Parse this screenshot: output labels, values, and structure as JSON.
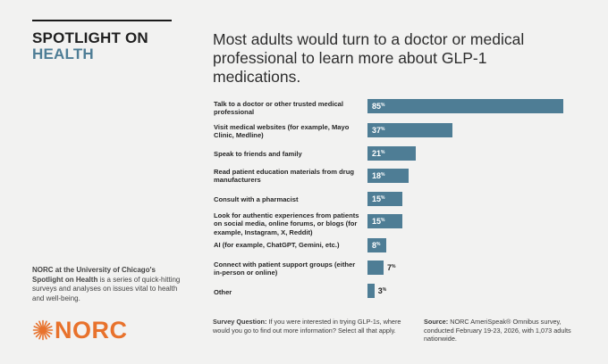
{
  "header": {
    "title_line1": "SPOTLIGHT ON",
    "title_line2": "HEALTH",
    "headline": "Most adults would turn to a doctor or medical professional to learn more about GLP-1 medications."
  },
  "about": {
    "bold": "NORC at the University of Chicago's Spotlight on Health",
    "rest": " is a series of quick-hitting surveys and analyses on issues vital to health and well-being."
  },
  "logo": {
    "text": "NORC"
  },
  "colors": {
    "bar": "#4e7d95",
    "accent": "#e8722c",
    "background": "#f2f2f1"
  },
  "chart_data": {
    "type": "bar",
    "orientation": "horizontal",
    "categories": [
      "Talk to a doctor or other trusted medical professional",
      "Visit medical websites (for example, Mayo Clinic, Medline)",
      "Speak to friends and family",
      "Read patient education materials from drug manufacturers",
      "Consult with a pharmacist",
      "Look for authentic experiences from patients on social media, online forums, or blogs (for example, Instagram, X, Reddit)",
      "AI (for example, ChatGPT, Gemini, etc.)",
      "Connect with patient support groups (either in-person or online)",
      "Other"
    ],
    "values": [
      85,
      37,
      21,
      18,
      15,
      15,
      8,
      7,
      3
    ],
    "value_labels": [
      "85",
      "37",
      "21",
      "18",
      "15",
      "15",
      "8",
      "7",
      "3"
    ],
    "unit": "%",
    "xlim": [
      0,
      85
    ]
  },
  "footer": {
    "question_label": "Survey Question:",
    "question_text": " If you were interested in trying GLP-1s, where would you go to find out more information? Select all that apply.",
    "source_label": "Source:",
    "source_text": " NORC AmeriSpeak® Omnibus survey, conducted February 19-23, 2026, with 1,073 adults nationwide."
  }
}
